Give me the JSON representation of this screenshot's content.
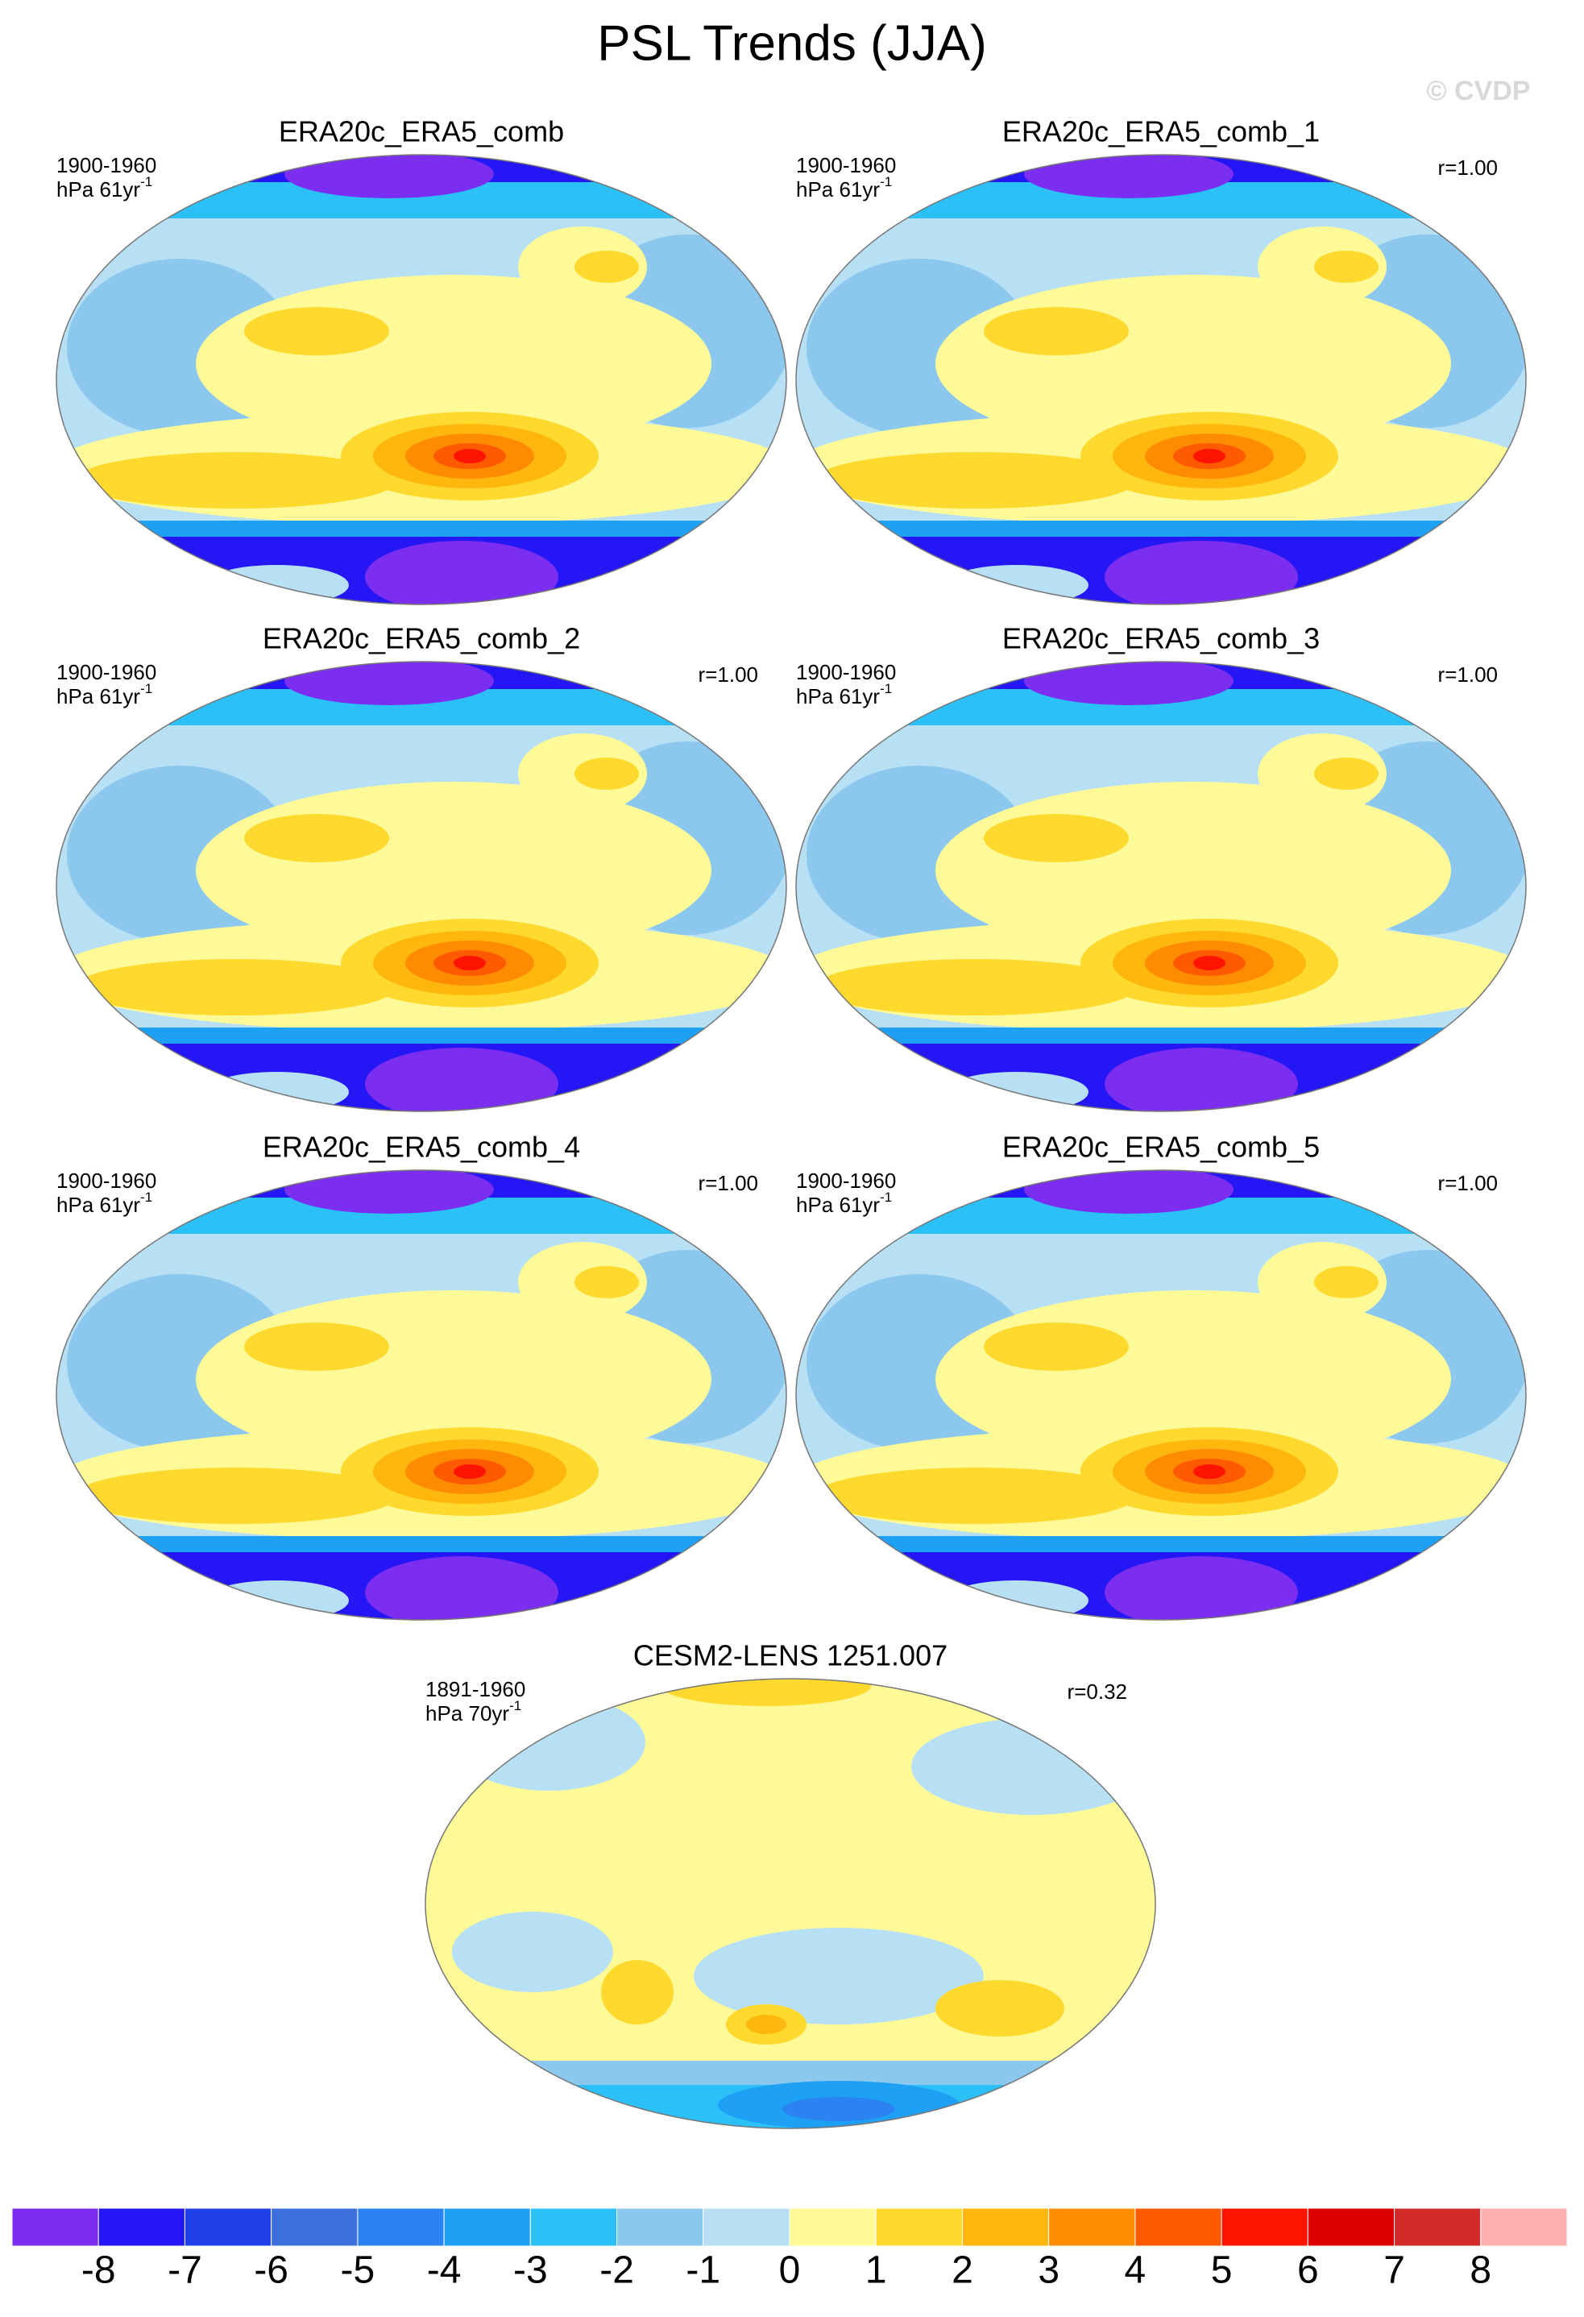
{
  "title": "PSL Trends (JJA)",
  "watermark": "© CVDP",
  "panels": [
    {
      "title": "ERA20c_ERA5_comb",
      "period": "1900-1960",
      "units": "hPa 61yr",
      "units_exponent": "-1"
    },
    {
      "title": "ERA20c_ERA5_comb_1",
      "period": "1900-1960",
      "units": "hPa 61yr",
      "units_exponent": "-1",
      "r": "r=1.00"
    },
    {
      "title": "ERA20c_ERA5_comb_2",
      "period": "1900-1960",
      "units": "hPa 61yr",
      "units_exponent": "-1",
      "r": "r=1.00"
    },
    {
      "title": "ERA20c_ERA5_comb_3",
      "period": "1900-1960",
      "units": "hPa 61yr",
      "units_exponent": "-1",
      "r": "r=1.00"
    },
    {
      "title": "ERA20c_ERA5_comb_4",
      "period": "1900-1960",
      "units": "hPa 61yr",
      "units_exponent": "-1",
      "r": "r=1.00"
    },
    {
      "title": "ERA20c_ERA5_comb_5",
      "period": "1900-1960",
      "units": "hPa 61yr",
      "units_exponent": "-1",
      "r": "r=1.00"
    },
    {
      "title": "CESM2-LENS 1251.007",
      "period": "1891-1960",
      "units": "hPa 70yr",
      "units_exponent": "-1",
      "r": "r=0.32"
    }
  ],
  "colorbar": {
    "colors": [
      "#7b2ef0",
      "#2416f5",
      "#1f40e8",
      "#3d6fdd",
      "#2a83f0",
      "#1ea0f5",
      "#2cc0f8",
      "#8cc8ee",
      "#b8e0f5",
      "#fffa98",
      "#ffd92e",
      "#ffb70d",
      "#ff8c00",
      "#ff5a00",
      "#ff1400",
      "#dc0000",
      "#d42a2a",
      "#ffb0b0"
    ],
    "ticks": [
      -8,
      -7,
      -6,
      -5,
      -4,
      -3,
      -2,
      -1,
      0,
      1,
      2,
      3,
      4,
      5,
      6,
      7,
      8
    ]
  }
}
